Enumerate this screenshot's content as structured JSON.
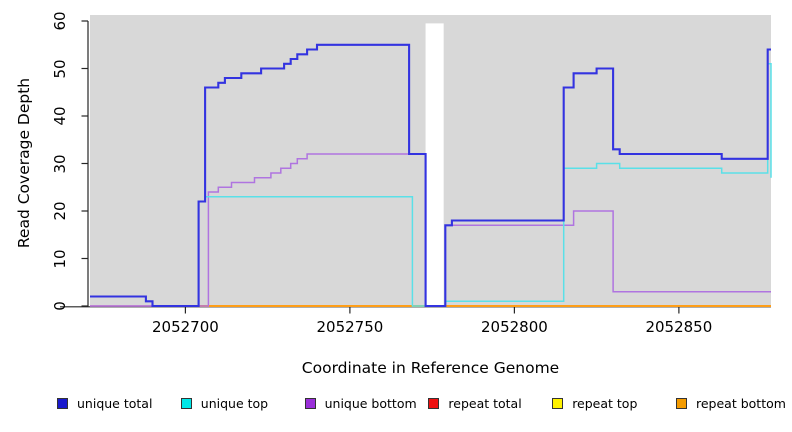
{
  "chart_data": {
    "type": "line",
    "title": "",
    "xlabel": "Coordinate in Reference Genome",
    "ylabel": "Read Coverage Depth",
    "xlim": [
      2052671,
      2052878
    ],
    "ylim": [
      0,
      60
    ],
    "x_ticks": [
      2052700,
      2052750,
      2052800,
      2052850
    ],
    "y_ticks": [
      0,
      10,
      20,
      30,
      40,
      50,
      60
    ],
    "panel_bg": "#d8d8d8",
    "band_bg": "#ffffff",
    "axis_color": "#262626",
    "text_color": "#000000",
    "missing_data_band": {
      "x0": 2052773,
      "x1": 2052778.5,
      "v_top": 59.5
    },
    "grid": false,
    "legend_position": "bottom",
    "series": [
      {
        "name": "repeat total",
        "color": "#ea7f92",
        "width": 1.6,
        "segments": [
          [
            [
              2052671,
              0
            ],
            [
              2052773,
              0
            ]
          ]
        ]
      },
      {
        "name": "repeat top",
        "color": "#f5e642",
        "width": 1.6,
        "segments": [
          [
            [
              2052700,
              0
            ],
            [
              2052773,
              0
            ]
          ],
          [
            [
              2052779,
              0
            ],
            [
              2052878,
              0
            ]
          ]
        ]
      },
      {
        "name": "repeat bottom",
        "color": "#ff9e17",
        "width": 1.9,
        "segments": [
          [
            [
              2052700,
              0
            ],
            [
              2052773,
              0
            ]
          ],
          [
            [
              2052779,
              0
            ],
            [
              2052878,
              0
            ]
          ]
        ]
      },
      {
        "name": "unique bottom",
        "color": "#af74e0",
        "width": 1.5,
        "segments": [
          [
            [
              2052671,
              0
            ],
            [
              2052707,
              24
            ],
            [
              2052710,
              25
            ],
            [
              2052714,
              26
            ],
            [
              2052721,
              27
            ],
            [
              2052726,
              28
            ],
            [
              2052729,
              29
            ],
            [
              2052732,
              30
            ],
            [
              2052734,
              31
            ],
            [
              2052737,
              32
            ],
            [
              2052773,
              0
            ],
            [
              2052779,
              17
            ],
            [
              2052818,
              20
            ],
            [
              2052830,
              3
            ],
            [
              2052878,
              3
            ]
          ]
        ]
      },
      {
        "name": "unique top",
        "color": "#5ae0e8",
        "width": 1.5,
        "segments": [
          [
            [
              2052671,
              2
            ],
            [
              2052688,
              1
            ],
            [
              2052690,
              0
            ],
            [
              2052704,
              22
            ],
            [
              2052706,
              23
            ],
            [
              2052769,
              0
            ],
            [
              2052779,
              1
            ],
            [
              2052815,
              29
            ],
            [
              2052825,
              30
            ],
            [
              2052832,
              29
            ],
            [
              2052863,
              28
            ],
            [
              2052877,
              51
            ],
            [
              2052878,
              27
            ]
          ]
        ]
      },
      {
        "name": "unique total",
        "color": "#3333e0",
        "width": 2.1,
        "segments": [
          [
            [
              2052671,
              2
            ],
            [
              2052688,
              1
            ],
            [
              2052690,
              0
            ],
            [
              2052704,
              22
            ],
            [
              2052706,
              46
            ],
            [
              2052710,
              47
            ],
            [
              2052712,
              48
            ],
            [
              2052717,
              49
            ],
            [
              2052723,
              50
            ],
            [
              2052730,
              51
            ],
            [
              2052732,
              52
            ],
            [
              2052734,
              53
            ],
            [
              2052737,
              54
            ],
            [
              2052740,
              55
            ],
            [
              2052768,
              32
            ],
            [
              2052773,
              0
            ],
            [
              2052779,
              17
            ],
            [
              2052781,
              18
            ],
            [
              2052815,
              46
            ],
            [
              2052818,
              49
            ],
            [
              2052825,
              50
            ],
            [
              2052830,
              33
            ],
            [
              2052832,
              32
            ],
            [
              2052863,
              31
            ],
            [
              2052877,
              54
            ],
            [
              2052878,
              54
            ]
          ]
        ]
      }
    ],
    "legend": [
      {
        "label": "unique total",
        "color": "#1a1acd"
      },
      {
        "label": "unique top",
        "color": "#00e8e8"
      },
      {
        "label": "unique bottom",
        "color": "#9a2fd9"
      },
      {
        "label": "repeat total",
        "color": "#ee1111"
      },
      {
        "label": "repeat top",
        "color": "#fff200"
      },
      {
        "label": "repeat bottom",
        "color": "#f49b00"
      }
    ]
  }
}
